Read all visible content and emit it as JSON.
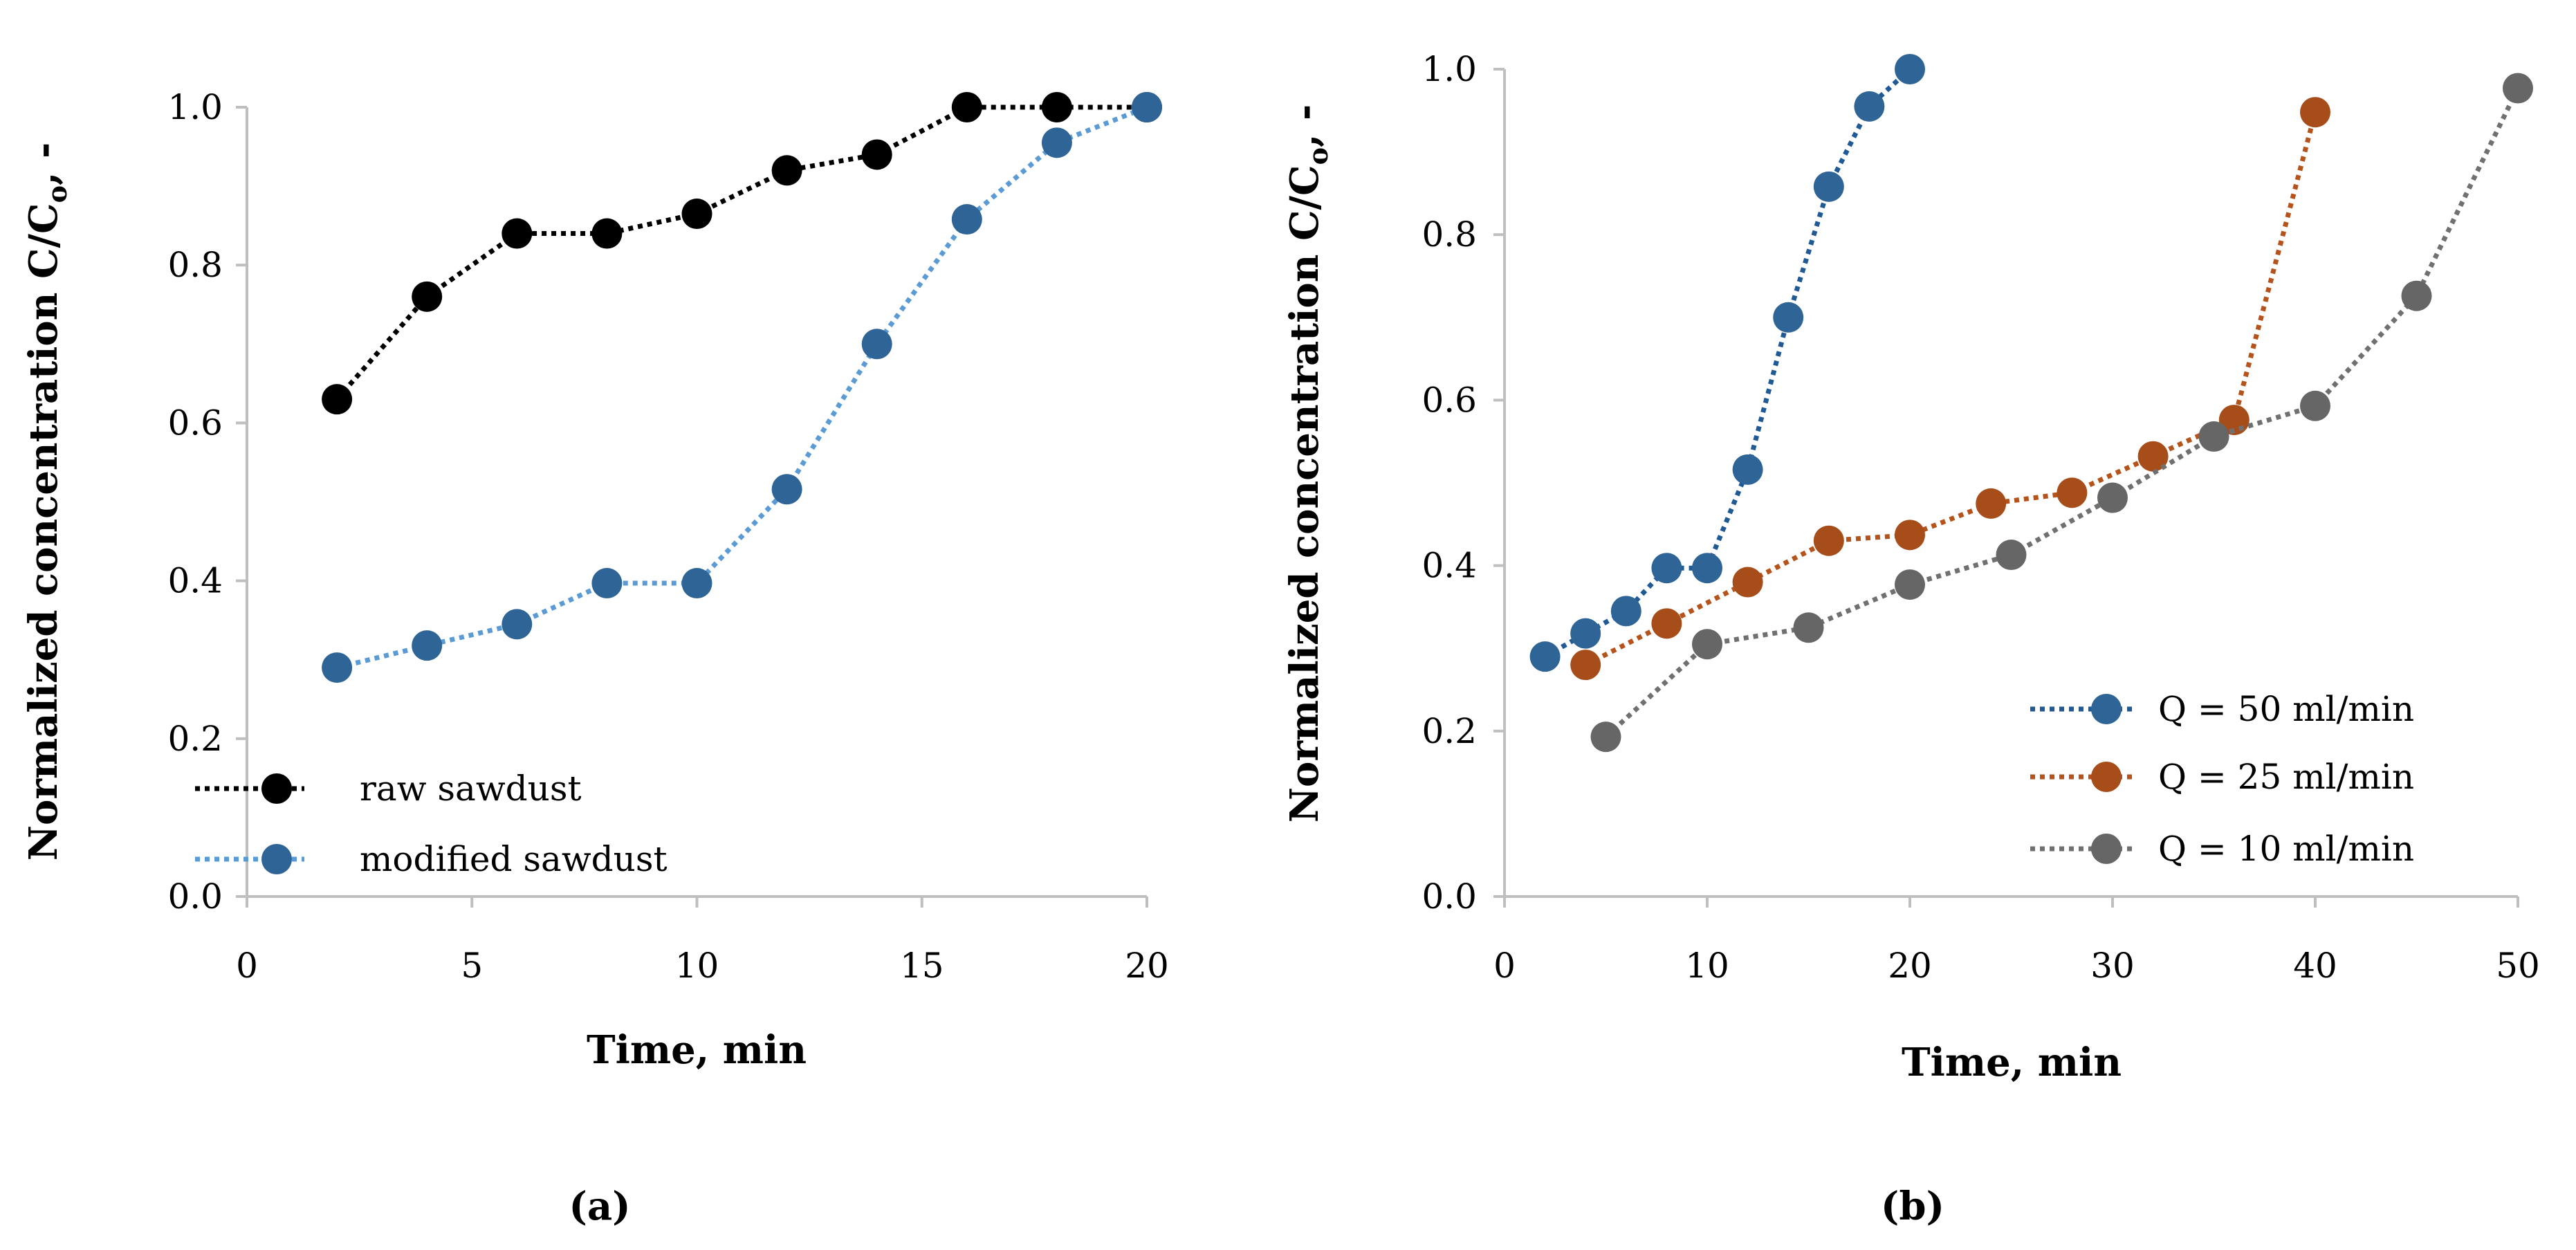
{
  "chart_data": [
    {
      "type": "line",
      "panel_label": "(a)",
      "xlabel": "Time, min",
      "ylabel_main": "Normalized concentration C/C",
      "ylabel_sub": "o",
      "ylabel_tail": ", -",
      "xlim": [
        0,
        20
      ],
      "ylim": [
        0,
        1.0
      ],
      "xticks": [
        0,
        5,
        10,
        15,
        20
      ],
      "xtick_labels": [
        "0",
        "5",
        "10",
        "15",
        "20"
      ],
      "yticks": [
        0,
        0.2,
        0.4,
        0.6,
        0.8,
        1.0
      ],
      "ytick_labels": [
        "0.0",
        "0.2",
        "0.4",
        "0.6",
        "0.8",
        "1.0"
      ],
      "grid": false,
      "legend_position": "bottom-left",
      "series": [
        {
          "name": "raw sawdust",
          "line_color": "#000000",
          "marker_color": "#000000",
          "x": [
            2,
            4,
            6,
            8,
            10,
            12,
            14,
            16,
            18,
            20
          ],
          "y": [
            0.63,
            0.76,
            0.84,
            0.84,
            0.865,
            0.92,
            0.94,
            1.0,
            1.0,
            1.0
          ]
        },
        {
          "name": "modified sawdust",
          "line_color": "#5b9bd5",
          "marker_color": "#2e6496",
          "x": [
            2,
            4,
            6,
            8,
            10,
            12,
            14,
            16,
            18,
            20
          ],
          "y": [
            0.29,
            0.318,
            0.345,
            0.397,
            0.397,
            0.516,
            0.7,
            0.858,
            0.955,
            1.0
          ]
        }
      ]
    },
    {
      "type": "line",
      "panel_label": "(b)",
      "xlabel": "Time, min",
      "ylabel_main": "Normalized concentration C/C",
      "ylabel_sub": "o",
      "ylabel_tail": ", -",
      "xlim": [
        0,
        50
      ],
      "ylim": [
        0,
        1.0
      ],
      "xticks": [
        0,
        10,
        20,
        30,
        40,
        50
      ],
      "xtick_labels": [
        "0",
        "10",
        "20",
        "30",
        "40",
        "50"
      ],
      "yticks": [
        0,
        0.2,
        0.4,
        0.6,
        0.8,
        1.0
      ],
      "ytick_labels": [
        "0.0",
        "0.2",
        "0.4",
        "0.6",
        "0.8",
        "1.0"
      ],
      "grid": false,
      "legend_position": "bottom-right",
      "series": [
        {
          "name": "Q = 50 ml/min",
          "line_color": "#1f5a96",
          "marker_color": "#2e6496",
          "x": [
            2,
            4,
            6,
            8,
            10,
            12,
            14,
            16,
            18,
            20
          ],
          "y": [
            0.29,
            0.318,
            0.345,
            0.397,
            0.397,
            0.516,
            0.7,
            0.858,
            0.955,
            1.0
          ]
        },
        {
          "name": "Q = 25 ml/min",
          "line_color": "#b5531a",
          "marker_color": "#a64d1a",
          "x": [
            4,
            8,
            12,
            16,
            20,
            24,
            28,
            32,
            36,
            40
          ],
          "y": [
            0.28,
            0.33,
            0.38,
            0.43,
            0.437,
            0.475,
            0.488,
            0.532,
            0.576,
            0.948
          ]
        },
        {
          "name": "Q = 10 ml/min",
          "line_color": "#707070",
          "marker_color": "#666666",
          "x": [
            5,
            10,
            15,
            20,
            25,
            30,
            35,
            40,
            45,
            50
          ],
          "y": [
            0.193,
            0.305,
            0.325,
            0.377,
            0.413,
            0.482,
            0.556,
            0.593,
            0.726,
            0.977
          ]
        }
      ]
    }
  ]
}
